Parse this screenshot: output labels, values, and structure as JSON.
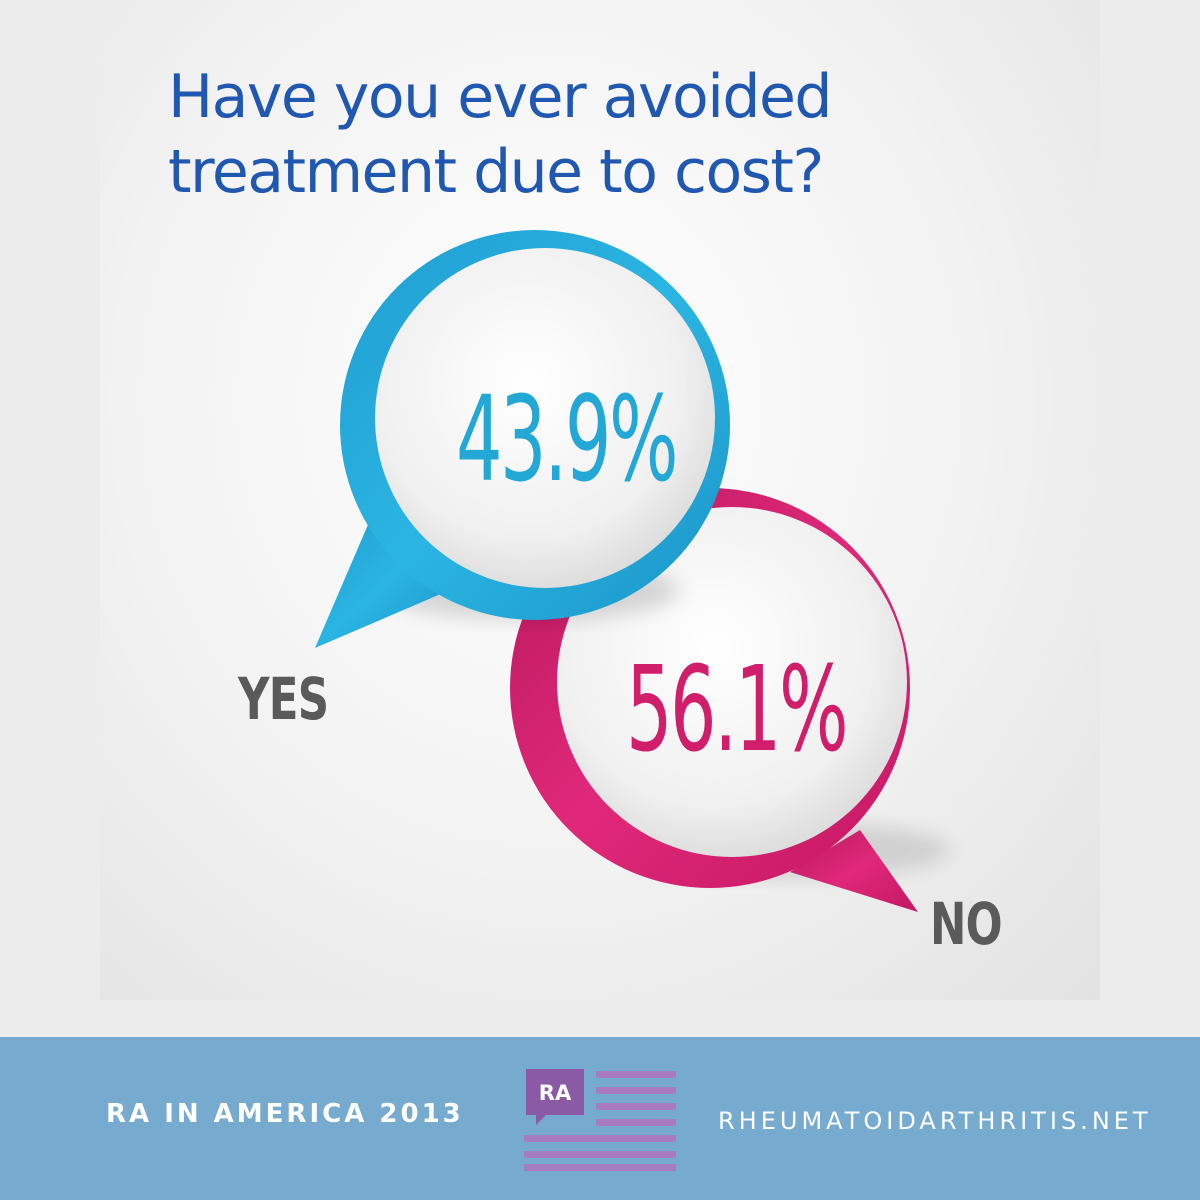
{
  "question": {
    "line1": "Have you ever avoided",
    "line2": "treatment due to cost?"
  },
  "answers": {
    "yes": {
      "percent": "43.9%",
      "label": "YES",
      "value": 43.9,
      "color": "#23a8d6"
    },
    "no": {
      "percent": "56.1%",
      "label": "NO",
      "value": 56.1,
      "color": "#d01e6a"
    }
  },
  "footer": {
    "left_text": "RA IN AMERICA 2013",
    "logo_text": "RA",
    "right_text": "RHEUMATOIDARTHRITIS.NET",
    "logo_color": "#8b5aa6",
    "stripe_color": "#a77bbf",
    "background_color": "#76aacf"
  }
}
